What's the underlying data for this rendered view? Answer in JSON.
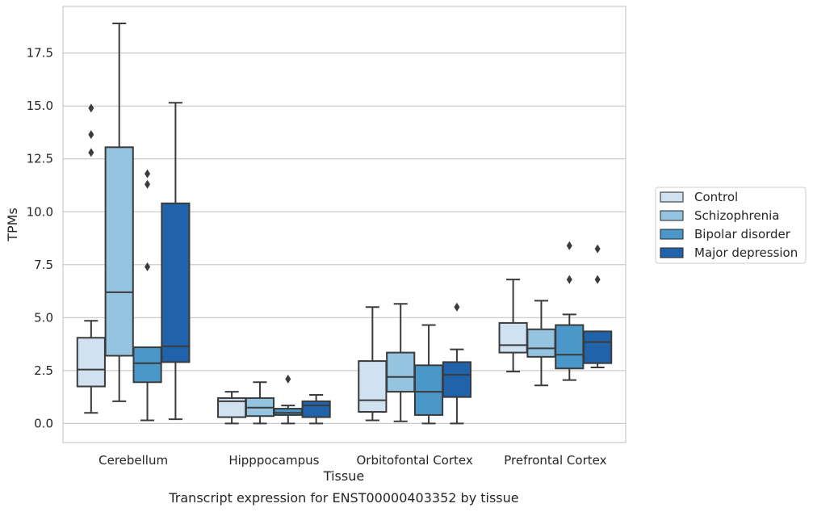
{
  "chart_data": {
    "type": "boxplot",
    "title": "Transcript expression for ENST00000403352 by tissue",
    "xlabel": "Tissue",
    "ylabel": "TPMs",
    "ylim": [
      -0.9,
      19.7
    ],
    "yticks": [
      0.0,
      2.5,
      5.0,
      7.5,
      10.0,
      12.5,
      15.0,
      17.5
    ],
    "ytick_labels": [
      "0.0",
      "2.5",
      "5.0",
      "7.5",
      "10.0",
      "12.5",
      "15.0",
      "17.5"
    ],
    "grid": "horizontal",
    "legend_position": "right",
    "categories": [
      "Cerebellum",
      "Hipppocampus",
      "Orbitofontal Cortex",
      "Prefrontal Cortex"
    ],
    "series": [
      {
        "name": "Control",
        "color": "#d0e1f2",
        "boxes": [
          {
            "whislo": 0.5,
            "q1": 1.75,
            "med": 2.55,
            "q3": 4.05,
            "whishi": 4.85,
            "fliers": [
              12.8,
              13.65,
              14.9
            ]
          },
          {
            "whislo": 0.0,
            "q1": 0.3,
            "med": 1.05,
            "q3": 1.2,
            "whishi": 1.5,
            "fliers": []
          },
          {
            "whislo": 0.15,
            "q1": 0.55,
            "med": 1.1,
            "q3": 2.95,
            "whishi": 5.5,
            "fliers": []
          },
          {
            "whislo": 2.45,
            "q1": 3.35,
            "med": 3.7,
            "q3": 4.75,
            "whishi": 6.8,
            "fliers": []
          }
        ]
      },
      {
        "name": "Schizophrenia",
        "color": "#94c4df",
        "boxes": [
          {
            "whislo": 1.05,
            "q1": 3.2,
            "med": 6.2,
            "q3": 13.05,
            "whishi": 18.9,
            "fliers": []
          },
          {
            "whislo": 0.0,
            "q1": 0.35,
            "med": 0.75,
            "q3": 1.2,
            "whishi": 1.95,
            "fliers": []
          },
          {
            "whislo": 0.1,
            "q1": 1.5,
            "med": 2.2,
            "q3": 3.35,
            "whishi": 5.65,
            "fliers": []
          },
          {
            "whislo": 1.8,
            "q1": 3.15,
            "med": 3.55,
            "q3": 4.45,
            "whishi": 5.8,
            "fliers": []
          }
        ]
      },
      {
        "name": "Bipolar disorder",
        "color": "#4a98c9",
        "boxes": [
          {
            "whislo": 0.15,
            "q1": 1.95,
            "med": 2.85,
            "q3": 3.6,
            "whishi": 3.6,
            "fliers": [
              7.4,
              11.3,
              11.8
            ]
          },
          {
            "whislo": 0.0,
            "q1": 0.4,
            "med": 0.5,
            "q3": 0.7,
            "whishi": 0.85,
            "fliers": [
              2.1
            ]
          },
          {
            "whislo": 0.0,
            "q1": 0.4,
            "med": 1.5,
            "q3": 2.75,
            "whishi": 4.65,
            "fliers": []
          },
          {
            "whislo": 2.05,
            "q1": 2.6,
            "med": 3.25,
            "q3": 4.65,
            "whishi": 5.15,
            "fliers": [
              6.8,
              8.4
            ]
          }
        ]
      },
      {
        "name": "Major depression",
        "color": "#2163aa",
        "boxes": [
          {
            "whislo": 0.2,
            "q1": 2.9,
            "med": 3.65,
            "q3": 10.4,
            "whishi": 15.15,
            "fliers": []
          },
          {
            "whislo": 0.0,
            "q1": 0.3,
            "med": 0.85,
            "q3": 1.05,
            "whishi": 1.35,
            "fliers": []
          },
          {
            "whislo": 0.0,
            "q1": 1.25,
            "med": 2.3,
            "q3": 2.9,
            "whishi": 3.5,
            "fliers": [
              5.5
            ]
          },
          {
            "whislo": 2.65,
            "q1": 2.85,
            "med": 3.85,
            "q3": 4.35,
            "whishi": 4.35,
            "fliers": [
              6.8,
              8.25
            ]
          }
        ]
      }
    ]
  },
  "colors": {
    "line": "#3b3b3b",
    "grid": "#cccccc",
    "axes_edge": "#cccccc"
  }
}
